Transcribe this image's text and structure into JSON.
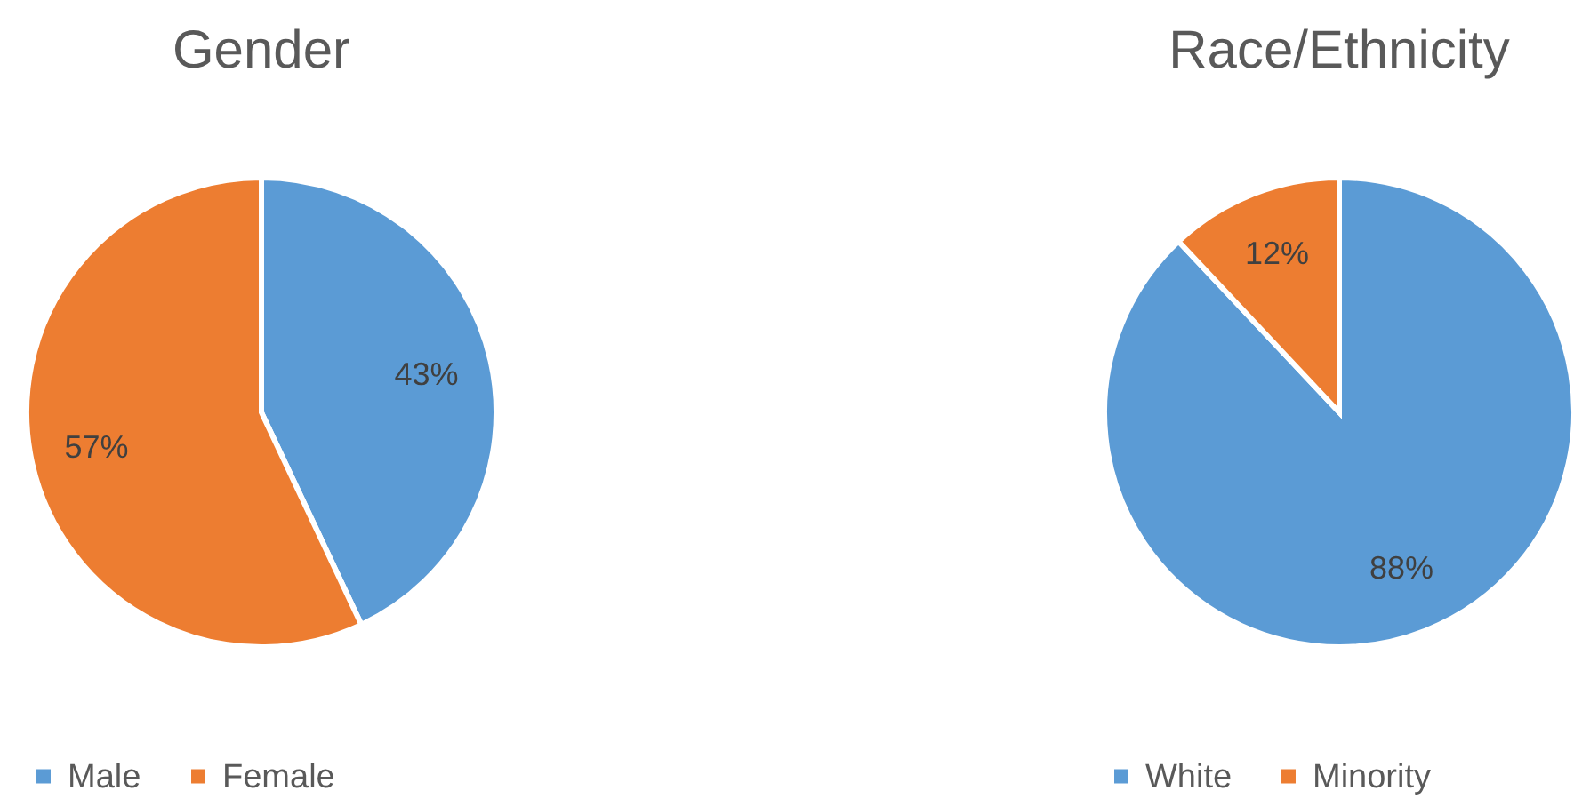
{
  "chart_data": [
    {
      "type": "pie",
      "title": "Gender",
      "categories": [
        "Male",
        "Female"
      ],
      "values": [
        43,
        57
      ],
      "colors": [
        "#5b9bd5",
        "#ed7d31"
      ],
      "value_labels": [
        "43%",
        "57%"
      ],
      "legend": "bottom"
    },
    {
      "type": "pie",
      "title": "Race/Ethnicity",
      "categories": [
        "White",
        "Minority"
      ],
      "values": [
        88,
        12
      ],
      "colors": [
        "#5b9bd5",
        "#ed7d31"
      ],
      "value_labels": [
        "88%",
        "12%"
      ],
      "legend": "bottom"
    }
  ]
}
